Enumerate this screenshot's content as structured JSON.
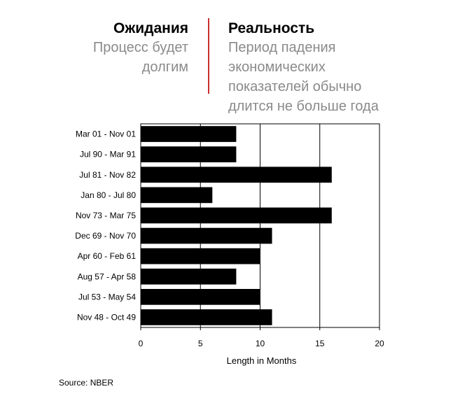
{
  "header": {
    "left_title": "Ожидания",
    "left_sub": [
      "Процесс будет",
      "долгим"
    ],
    "right_title": "Реальность",
    "right_sub": [
      "Период падения",
      "экономических",
      "показателей обычно",
      "длится не больше года"
    ],
    "divider_color": "#c9302c"
  },
  "source": "Source: NBER",
  "chart_data": {
    "type": "bar",
    "orientation": "horizontal",
    "categories": [
      "Mar 01 - Nov 01",
      "Jul 90 - Mar 91",
      "Jul 81 - Nov 82",
      "Jan 80 - Jul 80",
      "Nov 73 - Mar 75",
      "Dec 69 - Nov 70",
      "Apr 60 - Feb 61",
      "Aug 57 - Apr 58",
      "Jul 53 - May 54",
      "Nov 48 - Oct 49"
    ],
    "values": [
      8,
      8,
      16,
      6,
      16,
      11,
      10,
      8,
      10,
      11
    ],
    "xlabel": "Length in Months",
    "xlim": [
      0,
      20
    ],
    "xticks": [
      0,
      5,
      10,
      15,
      20
    ],
    "grid": "vertical",
    "bar_color": "#000000"
  }
}
